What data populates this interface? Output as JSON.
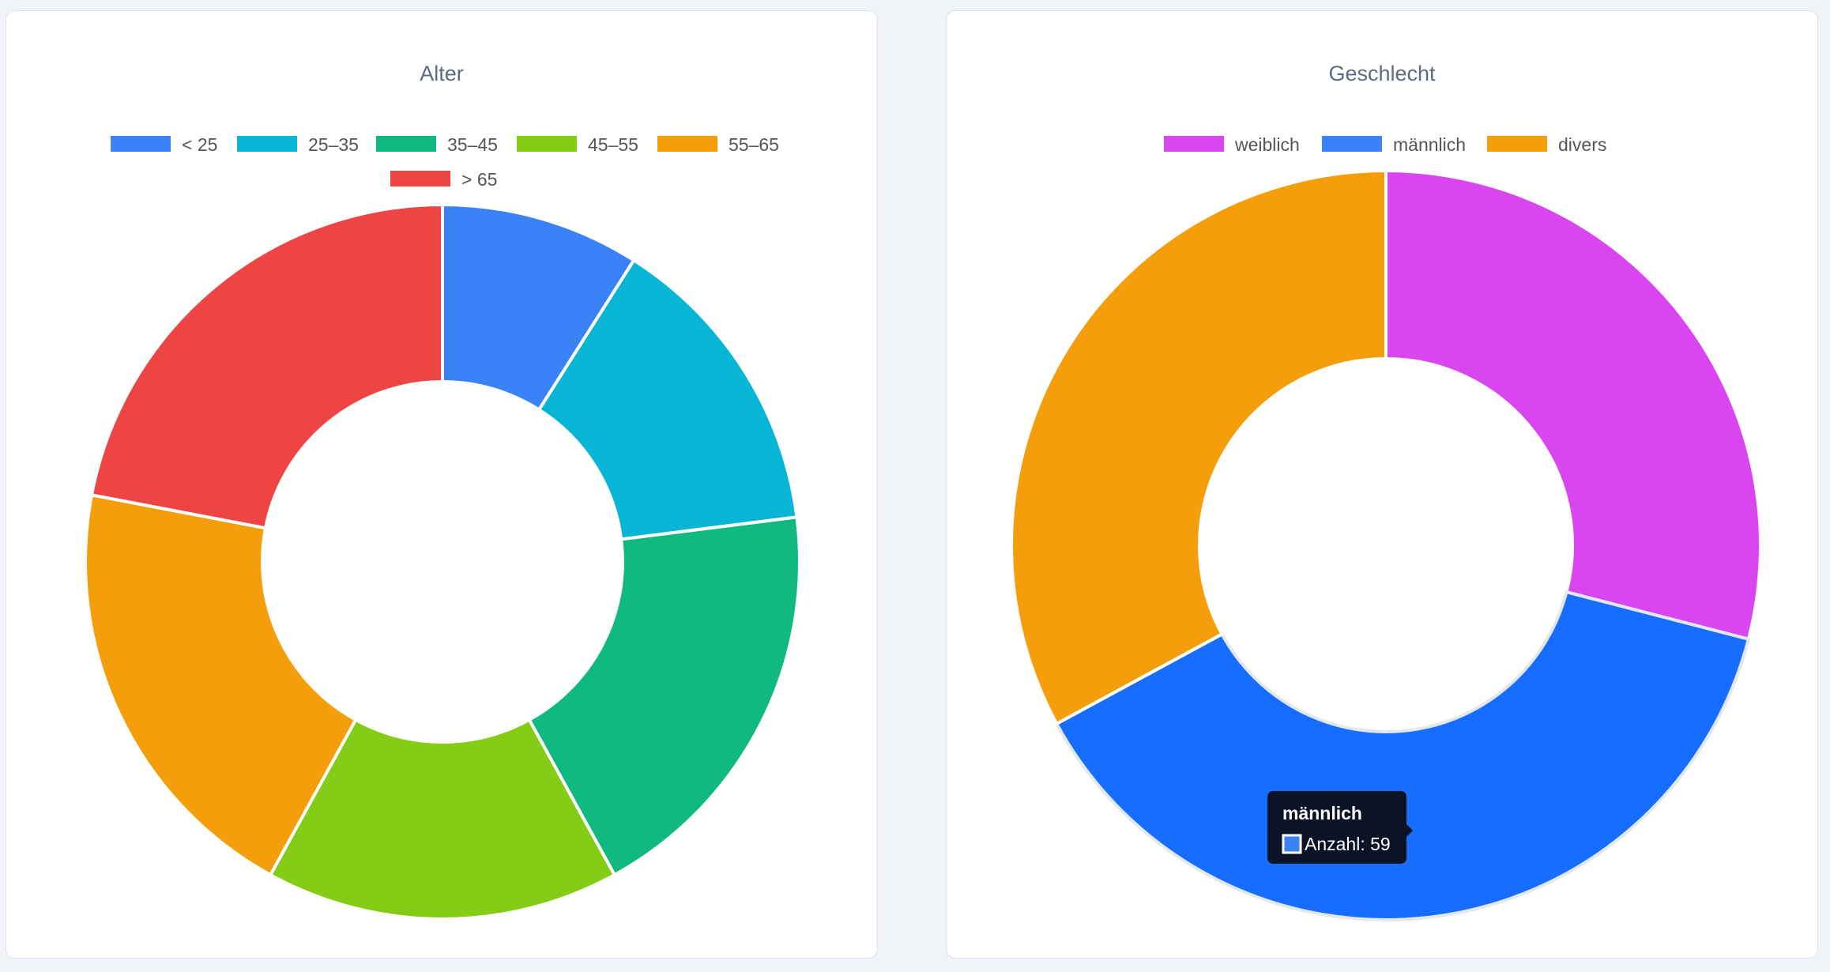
{
  "chart_data": [
    {
      "type": "pie",
      "variant": "doughnut",
      "title": "Alter",
      "legend_position": "top",
      "categories": [
        "< 25",
        "25–35",
        "35–45",
        "45–55",
        "55–65",
        "> 65"
      ],
      "values": [
        9,
        14,
        19,
        16,
        20,
        22
      ],
      "colors": [
        "#3b82f6",
        "#06b6d4",
        "#10b981",
        "#84cc16",
        "#f59e0b",
        "#ef4444"
      ]
    },
    {
      "type": "pie",
      "variant": "doughnut",
      "title": "Geschlecht",
      "legend_position": "top",
      "categories": [
        "weiblich",
        "männlich",
        "divers"
      ],
      "values": [
        45,
        59,
        51
      ],
      "colors": [
        "#d946ef",
        "#3b82f6",
        "#f59e0b"
      ],
      "highlight_index": 1,
      "highlight_color": "#166dff",
      "tooltip": {
        "title": "männlich",
        "label": "Anzahl: 59"
      }
    }
  ]
}
